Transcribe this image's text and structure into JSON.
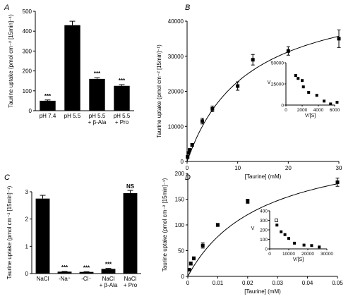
{
  "chart_data": [
    {
      "panel": "A",
      "type": "bar",
      "ylabel": "Taurine uptake (pmol cm⁻² [15min]⁻¹)",
      "ylim": [
        0,
        500
      ],
      "yticks": [
        0,
        100,
        200,
        300,
        400,
        500
      ],
      "categories": [
        [
          "pH 7.4"
        ],
        [
          "pH 5.5"
        ],
        [
          "pH 5.5",
          "+ β-Ala"
        ],
        [
          "pH 5.5",
          "+ Pro"
        ]
      ],
      "values": [
        50,
        430,
        160,
        125
      ],
      "errors": [
        4,
        20,
        6,
        6
      ],
      "annotations": [
        "***",
        "",
        "***",
        "***"
      ]
    },
    {
      "panel": "B",
      "type": "scatter",
      "xlabel": "[Taurine] (mM)",
      "ylabel": "Taurine uptake (pmol cm⁻² [15min]⁻¹)",
      "xlim": [
        0,
        30
      ],
      "ylim": [
        0,
        40000
      ],
      "xticks": [
        0,
        10,
        20,
        30
      ],
      "yticks": [
        0,
        10000,
        20000,
        30000,
        40000
      ],
      "points": [
        [
          0.1,
          1300
        ],
        [
          0.25,
          2400
        ],
        [
          0.5,
          3300
        ],
        [
          1,
          4700
        ],
        [
          3,
          11500
        ],
        [
          5,
          15000
        ],
        [
          10,
          21500
        ],
        [
          13,
          29000
        ],
        [
          20,
          31500
        ],
        [
          30,
          35000
        ]
      ],
      "errors": [
        300,
        300,
        300,
        400,
        800,
        800,
        1200,
        1500,
        1200,
        2500
      ],
      "fit": {
        "vmax": 50000,
        "km": 12
      },
      "inset": {
        "xlabel": "V/[S]",
        "ylabel": "V",
        "xlim": [
          0,
          6000
        ],
        "ylim": [
          0,
          50000
        ],
        "xticks": [
          0,
          2000,
          4000,
          6000
        ],
        "yticks": [
          0,
          25000,
          50000
        ],
        "points": [
          [
            1200,
            35000
          ],
          [
            1500,
            31500
          ],
          [
            2000,
            29000
          ],
          [
            2150,
            21500
          ],
          [
            2800,
            15000
          ],
          [
            3800,
            11500
          ],
          [
            4700,
            4700
          ],
          [
            5500,
            1300
          ],
          [
            6300,
            3300
          ]
        ]
      }
    },
    {
      "panel": "C",
      "type": "bar",
      "ylabel": "Taurine uptake (pmol cm⁻² [15min]⁻¹)",
      "ylim": [
        0,
        3
      ],
      "yticks": [
        0,
        1,
        2,
        3
      ],
      "categories": [
        [
          "NaCl"
        ],
        [
          "-Na⁺"
        ],
        [
          "-Cl⁻"
        ],
        [
          "NaCl",
          "+ β-Ala"
        ],
        [
          "NaCl",
          "+ Pro"
        ]
      ],
      "values": [
        2.75,
        0.07,
        0.06,
        0.17,
        2.95
      ],
      "errors": [
        0.12,
        0.01,
        0.01,
        0.02,
        0.1
      ],
      "annotations": [
        "",
        "***",
        "***",
        "***",
        "NS"
      ]
    },
    {
      "panel": "D",
      "type": "scatter",
      "xlabel": "[Taurine] (mM)",
      "ylabel": "Taurine uptake (pmol cm⁻² [15min]⁻¹)",
      "xlim": [
        0,
        0.05
      ],
      "ylim": [
        0,
        200
      ],
      "xticks": [
        0,
        0.01,
        0.02,
        0.03,
        0.04,
        0.05
      ],
      "yticks": [
        0,
        50,
        100,
        150,
        200
      ],
      "points": [
        [
          0.0005,
          13
        ],
        [
          0.001,
          25
        ],
        [
          0.002,
          35
        ],
        [
          0.005,
          60
        ],
        [
          0.01,
          100
        ],
        [
          0.02,
          146
        ],
        [
          0.05,
          183
        ]
      ],
      "errors": [
        2,
        3,
        3,
        5,
        3,
        4,
        8
      ],
      "fit": {
        "vmax": 270,
        "km": 0.025
      },
      "inset": {
        "xlabel": "V/[S]",
        "ylabel": "V",
        "xlim": [
          0,
          30000
        ],
        "ylim": [
          0,
          400
        ],
        "xticks": [
          0,
          10000,
          20000,
          30000
        ],
        "yticks": [
          0,
          100,
          200,
          300,
          400
        ],
        "points": [
          [
            3500,
            300
          ],
          [
            3800,
            250
          ],
          [
            6000,
            180
          ],
          [
            8000,
            150
          ],
          [
            10000,
            110
          ],
          [
            13000,
            60
          ],
          [
            18000,
            40
          ],
          [
            22000,
            35
          ],
          [
            26000,
            20
          ]
        ]
      }
    }
  ]
}
